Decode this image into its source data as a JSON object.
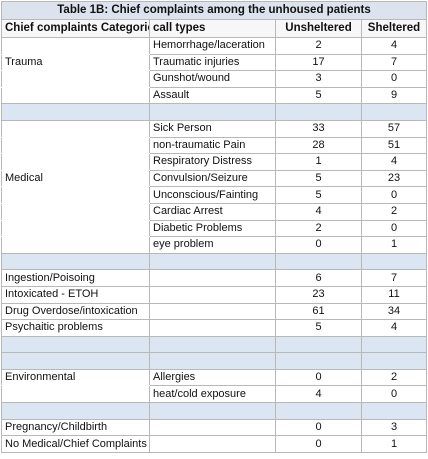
{
  "table": {
    "title": "Table 1B: Chief complaints among the unhoused patients",
    "headers": [
      "Chief complaints Categories",
      "call types",
      "Unsheltered",
      "Sheltered"
    ],
    "groups": [
      {
        "category": "Trauma",
        "rows": [
          {
            "call_type": "Hemorrhage/laceration",
            "unsheltered": "2",
            "sheltered": "4"
          },
          {
            "call_type": "Traumatic injuries",
            "unsheltered": "17",
            "sheltered": "7"
          },
          {
            "call_type": "Gunshot/wound",
            "unsheltered": "3",
            "sheltered": "0"
          },
          {
            "call_type": "Assault",
            "unsheltered": "5",
            "sheltered": "9"
          }
        ]
      },
      {
        "category": "Medical",
        "rows": [
          {
            "call_type": "Sick Person",
            "unsheltered": "33",
            "sheltered": "57"
          },
          {
            "call_type": "non-traumatic Pain",
            "unsheltered": "28",
            "sheltered": "51"
          },
          {
            "call_type": "Respiratory Distress",
            "unsheltered": "1",
            "sheltered": "4"
          },
          {
            "call_type": "Convulsion/Seizure",
            "unsheltered": "5",
            "sheltered": "23"
          },
          {
            "call_type": "Unconscious/Fainting",
            "unsheltered": "5",
            "sheltered": "0"
          },
          {
            "call_type": "Cardiac Arrest",
            "unsheltered": "4",
            "sheltered": "2"
          },
          {
            "call_type": "Diabetic Problems",
            "unsheltered": "2",
            "sheltered": "0"
          },
          {
            "call_type": "eye problem",
            "unsheltered": "0",
            "sheltered": "1"
          }
        ]
      },
      {
        "category": "",
        "rows": [
          {
            "category": "Ingestion/Poisoing",
            "call_type": "",
            "unsheltered": "6",
            "sheltered": "7"
          },
          {
            "category": "Intoxicated - ETOH",
            "call_type": "",
            "unsheltered": "23",
            "sheltered": "11"
          },
          {
            "category": "Drug Overdose/intoxication",
            "call_type": "",
            "unsheltered": "61",
            "sheltered": "34"
          },
          {
            "category": "Psychaitic problems",
            "call_type": "",
            "unsheltered": "5",
            "sheltered": "4"
          }
        ]
      },
      {
        "category": "Environmental",
        "rows": [
          {
            "call_type": "Allergies",
            "unsheltered": "0",
            "sheltered": "2"
          },
          {
            "call_type": "heat/cold exposure",
            "unsheltered": "4",
            "sheltered": "0"
          }
        ]
      },
      {
        "category": "",
        "rows": [
          {
            "category": "Pregnancy/Childbirth",
            "call_type": "",
            "unsheltered": "0",
            "sheltered": "3"
          },
          {
            "category": "No Medical/Chief Complaints",
            "call_type": "",
            "unsheltered": "0",
            "sheltered": "1"
          }
        ]
      }
    ],
    "separator_rows": [
      1,
      1,
      2,
      1,
      1
    ],
    "colors": {
      "title_bg": "#dce3ef",
      "separator_bg": "#dce6f3",
      "border": "#b8b8b8"
    }
  }
}
